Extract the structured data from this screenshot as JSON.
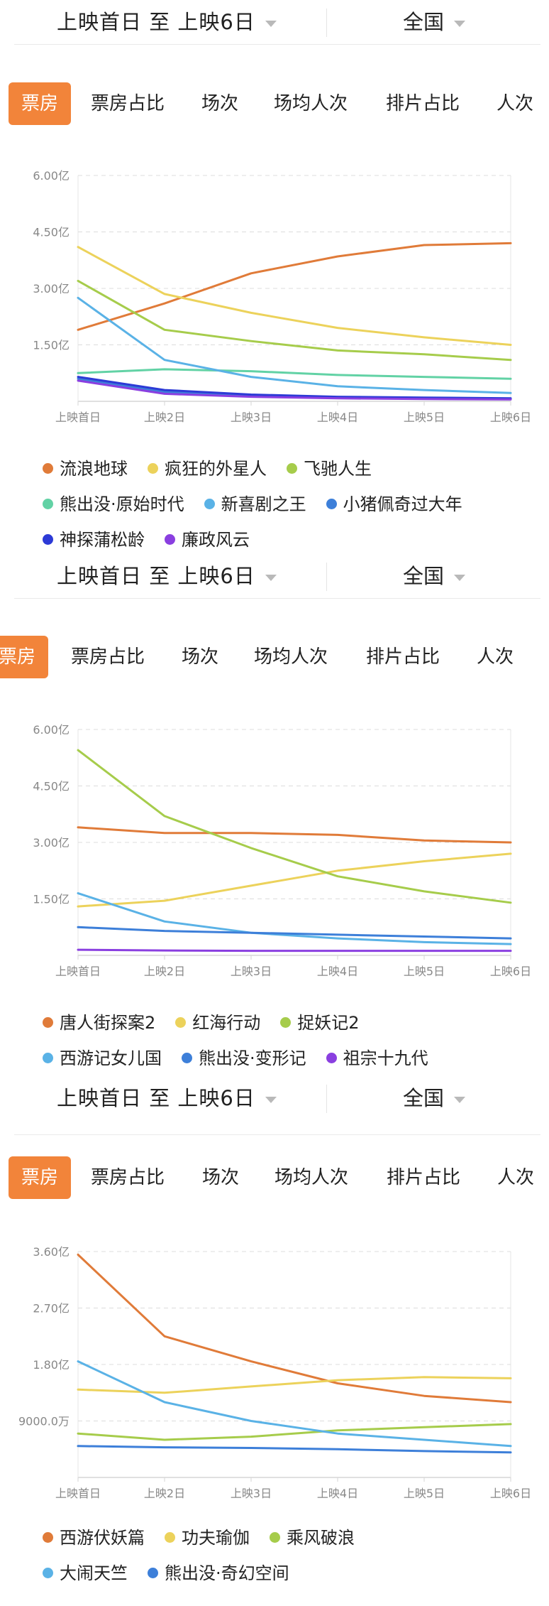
{
  "panels": [
    {
      "filter": {
        "date_range": "上映首日 至 上映6日",
        "region": "全国"
      },
      "tabs": [
        "票房",
        "票房占比",
        "场次",
        "场均人次",
        "排片占比",
        "人次"
      ],
      "active_tab": 0,
      "chart_data": {
        "type": "line",
        "x": [
          "上映首日",
          "上映2日",
          "上映3日",
          "上映4日",
          "上映5日",
          "上映6日"
        ],
        "ylim": [
          0,
          6.0
        ],
        "yticks": [
          "6.00亿",
          "4.50亿",
          "3.00亿",
          "1.50亿"
        ],
        "ytick_values": [
          6.0,
          4.5,
          3.0,
          1.5
        ],
        "grid": true,
        "legend_position": "bottom",
        "series": [
          {
            "name": "流浪地球",
            "color": "#e07b39",
            "values": [
              1.9,
              2.6,
              3.4,
              3.85,
              4.15,
              4.2
            ]
          },
          {
            "name": "疯狂的外星人",
            "color": "#ecd25b",
            "values": [
              4.1,
              2.85,
              2.35,
              1.95,
              1.7,
              1.5
            ]
          },
          {
            "name": "飞驰人生",
            "color": "#a6cc4b",
            "values": [
              3.2,
              1.9,
              1.6,
              1.35,
              1.25,
              1.1
            ]
          },
          {
            "name": "熊出没·原始时代",
            "color": "#62d2a5",
            "values": [
              0.75,
              0.85,
              0.8,
              0.7,
              0.65,
              0.6
            ]
          },
          {
            "name": "新喜剧之王",
            "color": "#5ab2e6",
            "values": [
              2.75,
              1.1,
              0.65,
              0.4,
              0.3,
              0.22
            ]
          },
          {
            "name": "小猪佩奇过大年",
            "color": "#3d7fd9",
            "values": [
              0.6,
              0.25,
              0.15,
              0.1,
              0.08,
              0.07
            ]
          },
          {
            "name": "神探蒲松龄",
            "color": "#2c3ad6",
            "values": [
              0.65,
              0.3,
              0.18,
              0.12,
              0.1,
              0.08
            ]
          },
          {
            "name": "廉政风云",
            "color": "#8a3fe0",
            "values": [
              0.55,
              0.2,
              0.12,
              0.08,
              0.06,
              0.05
            ]
          }
        ]
      }
    },
    {
      "filter": {
        "date_range": "上映首日 至 上映6日",
        "region": "全国"
      },
      "tabs": [
        "票房",
        "票房占比",
        "场次",
        "场均人次",
        "排片占比",
        "人次"
      ],
      "active_tab": 0,
      "chart_data": {
        "type": "line",
        "x": [
          "上映首日",
          "上映2日",
          "上映3日",
          "上映4日",
          "上映5日",
          "上映6日"
        ],
        "ylim": [
          0,
          6.0
        ],
        "yticks": [
          "6.00亿",
          "4.50亿",
          "3.00亿",
          "1.50亿"
        ],
        "ytick_values": [
          6.0,
          4.5,
          3.0,
          1.5
        ],
        "grid": true,
        "legend_position": "bottom",
        "series": [
          {
            "name": "唐人街探案2",
            "color": "#e07b39",
            "values": [
              3.4,
              3.25,
              3.25,
              3.2,
              3.05,
              3.0
            ]
          },
          {
            "name": "红海行动",
            "color": "#ecd25b",
            "values": [
              1.3,
              1.45,
              1.85,
              2.25,
              2.5,
              2.7
            ]
          },
          {
            "name": "捉妖记2",
            "color": "#a6cc4b",
            "values": [
              5.45,
              3.7,
              2.85,
              2.1,
              1.7,
              1.4
            ]
          },
          {
            "name": "西游记女儿国",
            "color": "#5ab2e6",
            "values": [
              1.65,
              0.9,
              0.6,
              0.45,
              0.35,
              0.3
            ]
          },
          {
            "name": "熊出没·变形记",
            "color": "#3d7fd9",
            "values": [
              0.75,
              0.65,
              0.6,
              0.55,
              0.5,
              0.45
            ]
          },
          {
            "name": "祖宗十九代",
            "color": "#8a3fe0",
            "values": [
              0.15,
              0.13,
              0.12,
              0.12,
              0.12,
              0.12
            ]
          }
        ]
      }
    },
    {
      "filter": {
        "date_range": "上映首日 至 上映6日",
        "region": "全国"
      },
      "tabs": [
        "票房",
        "票房占比",
        "场次",
        "场均人次",
        "排片占比",
        "人次"
      ],
      "active_tab": 0,
      "chart_data": {
        "type": "line",
        "x": [
          "上映首日",
          "上映2日",
          "上映3日",
          "上映4日",
          "上映5日",
          "上映6日"
        ],
        "ylim": [
          0,
          3.6
        ],
        "yticks": [
          "3.60亿",
          "2.70亿",
          "1.80亿",
          "9000.0万"
        ],
        "ytick_values": [
          3.6,
          2.7,
          1.8,
          0.9
        ],
        "grid": true,
        "legend_position": "bottom",
        "series": [
          {
            "name": "西游伏妖篇",
            "color": "#e07b39",
            "values": [
              3.55,
              2.25,
              1.85,
              1.5,
              1.3,
              1.2
            ]
          },
          {
            "name": "功夫瑜伽",
            "color": "#ecd25b",
            "values": [
              1.4,
              1.35,
              1.45,
              1.55,
              1.6,
              1.58
            ]
          },
          {
            "name": "乘风破浪",
            "color": "#a6cc4b",
            "values": [
              0.7,
              0.6,
              0.65,
              0.75,
              0.8,
              0.85
            ]
          },
          {
            "name": "大闹天竺",
            "color": "#5ab2e6",
            "values": [
              1.85,
              1.2,
              0.9,
              0.7,
              0.6,
              0.5
            ]
          },
          {
            "name": "熊出没·奇幻空间",
            "color": "#3d7fd9",
            "values": [
              0.5,
              0.48,
              0.47,
              0.45,
              0.42,
              0.4
            ]
          }
        ]
      }
    }
  ]
}
